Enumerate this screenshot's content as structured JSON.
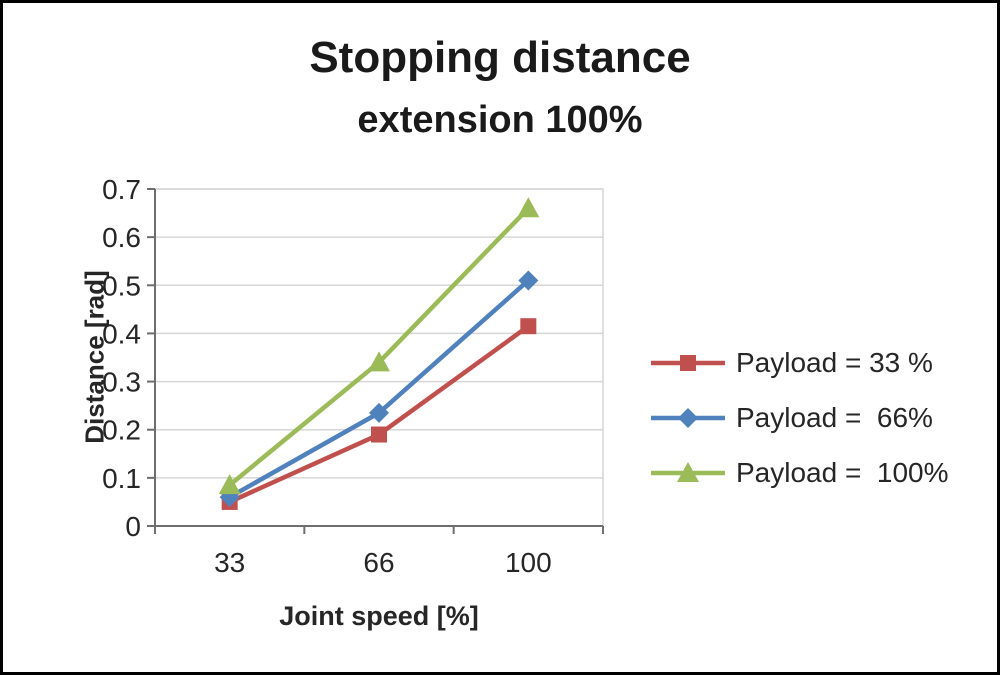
{
  "ui": {
    "background": "#ffffff",
    "frame_border": "#000000",
    "gridline_color": "#d6d6d6",
    "axis_color": "#6e6e6e",
    "text_color": "#262626"
  },
  "chart_data": {
    "type": "line",
    "title": "Stopping distance",
    "subtitle": "extension 100%",
    "xlabel": "Joint speed [%]",
    "ylabel": "Distance [rad]",
    "categories": [
      "33",
      "66",
      "100"
    ],
    "y_ticks": [
      "0",
      "0.1",
      "0.2",
      "0.3",
      "0.4",
      "0.5",
      "0.6",
      "0.7"
    ],
    "ylim": [
      0,
      0.7
    ],
    "grid": "horizontal",
    "legend_position": "right",
    "series": [
      {
        "name": "Payload = 33 %",
        "marker": "square",
        "color": "#C0504D",
        "values": [
          0.05,
          0.19,
          0.415
        ]
      },
      {
        "name": "Payload =  66%",
        "marker": "diamond",
        "color": "#4F81BD",
        "values": [
          0.06,
          0.235,
          0.51
        ]
      },
      {
        "name": "Payload =  100%",
        "marker": "triangle",
        "color": "#9BBB59",
        "values": [
          0.085,
          0.34,
          0.66
        ]
      }
    ]
  }
}
